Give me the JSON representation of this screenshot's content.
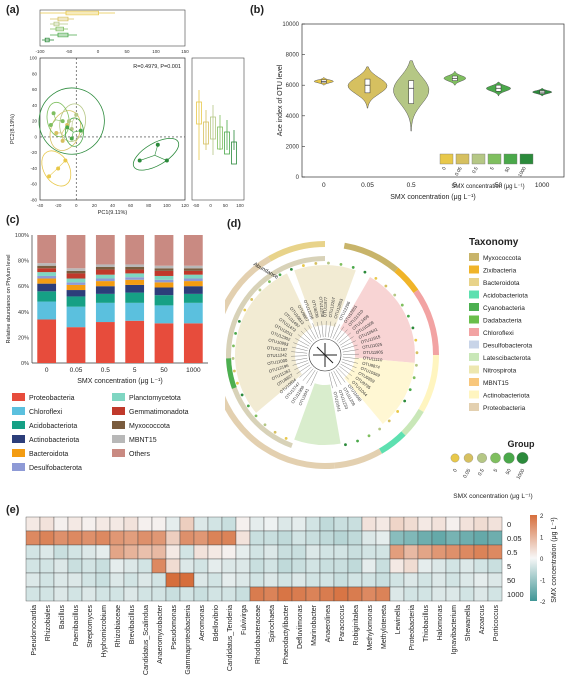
{
  "panel_labels": {
    "a": "(a)",
    "b": "(b)",
    "c": "(c)",
    "d": "(d)",
    "e": "(e)"
  },
  "colors": {
    "sx0": "#e8c84a",
    "sx005": "#d6c060",
    "sx05": "#b5c785",
    "sx5": "#7fbf5f",
    "sx50": "#4aa84a",
    "sx1000": "#2b8a3b"
  },
  "chart_data": [
    {
      "id": "a",
      "type": "scatter",
      "title": "",
      "xlabel": "PC1(9.11%)",
      "ylabel": "PC2(8.19%)",
      "xlim": [
        -40,
        120
      ],
      "ylim": [
        -80,
        100
      ],
      "xticks": [
        -40,
        -20,
        0,
        20,
        40,
        60,
        80,
        100,
        120
      ],
      "yticks": [
        -80,
        -60,
        -40,
        -20,
        0,
        20,
        40,
        60,
        80,
        100
      ],
      "annotation": "R=0.4979, P=0.001",
      "top_box_ticks": [
        -100,
        -50,
        0,
        50,
        100,
        150
      ],
      "right_box_ticks": [
        -50,
        0,
        50,
        100
      ],
      "series": [
        {
          "name": "0",
          "points": [
            [
              -30,
              -50
            ],
            [
              -20,
              -40
            ],
            [
              -12,
              -30
            ]
          ]
        },
        {
          "name": "0.05",
          "points": [
            [
              -22,
              5
            ],
            [
              -10,
              15
            ],
            [
              -15,
              -5
            ]
          ]
        },
        {
          "name": "0.5",
          "points": [
            [
              -8,
              20
            ],
            [
              0,
              28
            ],
            [
              -5,
              10
            ]
          ]
        },
        {
          "name": "5",
          "points": [
            [
              -25,
              30
            ],
            [
              -15,
              20
            ],
            [
              -28,
              15
            ]
          ]
        },
        {
          "name": "50",
          "points": [
            [
              -5,
              -2
            ],
            [
              5,
              8
            ],
            [
              -10,
              12
            ]
          ]
        },
        {
          "name": "1000",
          "points": [
            [
              70,
              -30
            ],
            [
              90,
              -10
            ],
            [
              100,
              -30
            ]
          ]
        }
      ]
    },
    {
      "id": "b",
      "type": "violin",
      "xlabel": "SMX concentration (μg L⁻¹)",
      "ylabel": "Ace index of OTU level",
      "ylim": [
        0,
        10000
      ],
      "yticks": [
        0,
        2000,
        4000,
        6000,
        8000,
        10000
      ],
      "categories": [
        "0",
        "0.05",
        "0.5",
        "5",
        "50",
        "1000"
      ],
      "values": [
        {
          "min": 6000,
          "q1": 6150,
          "median": 6250,
          "q3": 6350,
          "max": 6500
        },
        {
          "min": 4500,
          "q1": 5500,
          "median": 6000,
          "q3": 6400,
          "max": 7200
        },
        {
          "min": 3000,
          "q1": 4800,
          "median": 5800,
          "q3": 6300,
          "max": 7600
        },
        {
          "min": 6000,
          "q1": 6300,
          "median": 6450,
          "q3": 6600,
          "max": 6900
        },
        {
          "min": 5300,
          "q1": 5600,
          "median": 5800,
          "q3": 6000,
          "max": 6200
        },
        {
          "min": 5300,
          "q1": 5450,
          "median": 5550,
          "q3": 5650,
          "max": 5800
        }
      ],
      "legend_title": "SMX concentration (μg L⁻¹)"
    },
    {
      "id": "c",
      "type": "bar",
      "xlabel": "SMX concentration (μg L⁻¹)",
      "ylabel": "Relative abundance on Phylum level",
      "ylim": [
        0,
        1
      ],
      "yticks": [
        "0%",
        "20%",
        "40%",
        "60%",
        "80%",
        "100%"
      ],
      "categories": [
        "0",
        "0.05",
        "0.5",
        "5",
        "50",
        "1000"
      ],
      "series": [
        {
          "name": "Proteobacteria",
          "values": [
            0.34,
            0.28,
            0.32,
            0.33,
            0.31,
            0.31
          ]
        },
        {
          "name": "Chloroflexi",
          "values": [
            0.14,
            0.16,
            0.15,
            0.14,
            0.14,
            0.16
          ]
        },
        {
          "name": "Acidobacteriota",
          "values": [
            0.08,
            0.08,
            0.07,
            0.08,
            0.08,
            0.07
          ]
        },
        {
          "name": "Actinobacteriota",
          "values": [
            0.06,
            0.05,
            0.06,
            0.06,
            0.06,
            0.06
          ]
        },
        {
          "name": "Bacteroidota",
          "values": [
            0.04,
            0.04,
            0.04,
            0.04,
            0.04,
            0.04
          ]
        },
        {
          "name": "Desulfobacterota",
          "values": [
            0.02,
            0.02,
            0.02,
            0.02,
            0.02,
            0.02
          ]
        },
        {
          "name": "Planctomycetota",
          "values": [
            0.03,
            0.03,
            0.03,
            0.03,
            0.03,
            0.03
          ]
        },
        {
          "name": "Gemmatimonadota",
          "values": [
            0.03,
            0.04,
            0.04,
            0.03,
            0.04,
            0.03
          ]
        },
        {
          "name": "Myxococcota",
          "values": [
            0.02,
            0.02,
            0.02,
            0.02,
            0.02,
            0.02
          ]
        },
        {
          "name": "MBNT15",
          "values": [
            0.02,
            0.02,
            0.02,
            0.02,
            0.02,
            0.02
          ]
        },
        {
          "name": "Others",
          "values": [
            0.22,
            0.26,
            0.23,
            0.23,
            0.24,
            0.24
          ]
        }
      ],
      "series_colors": [
        "#e74c3c",
        "#5bc0de",
        "#16a085",
        "#2c3e7a",
        "#f39c12",
        "#8e9ad6",
        "#7fd6c2",
        "#c0392b",
        "#7a5c3e",
        "#b8b8b8",
        "#c98a82"
      ]
    },
    {
      "id": "d",
      "type": "tree",
      "ring_label": "Abundance",
      "taxonomy_title": "Taxonomy",
      "taxonomy": [
        {
          "name": "Myxococcota",
          "color": "#c8b46a"
        },
        {
          "name": "Zixibacteria",
          "color": "#f0b429"
        },
        {
          "name": "Bacteroidota",
          "color": "#e8d38a"
        },
        {
          "name": "Acidobacteriota",
          "color": "#5de0b0"
        },
        {
          "name": "Cyanobacteria",
          "color": "#4caf50"
        },
        {
          "name": "Dadabacteria",
          "color": "#6abf4b"
        },
        {
          "name": "Chloroflexi",
          "color": "#f2a3a3"
        },
        {
          "name": "Desulfobacterota",
          "color": "#c8d4e8"
        },
        {
          "name": "Latescibacterota",
          "color": "#c9e7b8"
        },
        {
          "name": "Nitrospirota",
          "color": "#ede7b0"
        },
        {
          "name": "MBNT15",
          "color": "#f8c77d"
        },
        {
          "name": "Actinobacteriota",
          "color": "#fff5c0"
        },
        {
          "name": "Proteobacteria",
          "color": "#e3d0b0"
        }
      ],
      "group_title": "Group",
      "group_labels": [
        "0",
        "0.05",
        "0.5",
        "5",
        "50",
        "1000"
      ],
      "group_axis": "SMX concentration (μg L⁻¹)",
      "otus": [
        "OTU3041",
        "OTU11908",
        "OTU13747",
        "OTU10834",
        "OTU8827",
        "OTU11262",
        "OTU12196",
        "OTU11000",
        "OTU11242",
        "OTU12187",
        "OTU10993",
        "OTU12302",
        "OTU12011",
        "OTU11472",
        "OTU11497",
        "OTU10813",
        "OTU9807",
        "OTU12236",
        "OTU8236",
        "OTU12258",
        "OTU11877",
        "OTU12267",
        "OTU12853",
        "OTU12296",
        "OTU12851",
        "OTU11310",
        "OTU12459",
        "OTU10309",
        "OTU10541",
        "OTU11915",
        "OTU11025",
        "OTU11905",
        "OTU11110",
        "OTU8874",
        "OTU10569",
        "OTU9859",
        "OTU9795",
        "OTU11044",
        "OTU11048",
        "OTU11209",
        "OTU11233",
        "OTU10541b"
      ]
    },
    {
      "id": "e",
      "type": "heatmap",
      "ylabel": "SMX concentration (μg L⁻¹)",
      "rows": [
        "0",
        "0.05",
        "0.5",
        "5",
        "50",
        "1000"
      ],
      "columns": [
        "Pseudonocardia",
        "Rhizobiales",
        "Bacillus",
        "Paenibacillus",
        "Streptomyces",
        "Hyphomicrobium",
        "Rhizobiaceae",
        "Brevibacillus",
        "Candidatus_Scalindua",
        "Anaeromyxobacter",
        "Pseudomonas",
        "Gammaproteobacteria",
        "Aeromonas",
        "Bdellovibrio",
        "Candidatus_Tenderia",
        "Fulvivirga",
        "Rhodobacteraceae",
        "Spirochaeta",
        "Phaeodactylibacter",
        "Defluviimonas",
        "Marinobacter",
        "Anaerolinea",
        "Paracoccus",
        "Robiginitalea",
        "Methylomonas",
        "Methyloteneta",
        "Lewinella",
        "Proteobacteria",
        "Thiobacillus",
        "Halomonas",
        "Ignavibacterium",
        "Shewanella",
        "Azoarcus",
        "Porticoccus"
      ],
      "scale": [
        -2,
        -1,
        0,
        1,
        2
      ],
      "values": [
        [
          0.2,
          0.3,
          0.1,
          0.2,
          0.1,
          0.2,
          0.2,
          0.3,
          0.1,
          0.1,
          -0.2,
          0.6,
          -0.3,
          -0.4,
          -0.5,
          0.1,
          -0.2,
          -0.1,
          -0.3,
          -0.2,
          -0.4,
          -0.6,
          -0.5,
          -0.5,
          0.3,
          0.2,
          0.5,
          0.4,
          0.2,
          0.3,
          0.1,
          0.3,
          0.4,
          0.3
        ],
        [
          1.6,
          1.7,
          1.5,
          1.6,
          1.5,
          1.6,
          1.4,
          1.3,
          1.5,
          1.4,
          0.6,
          1.5,
          1.4,
          1.7,
          1.7,
          0.3,
          -0.5,
          -0.5,
          -0.6,
          -0.4,
          -0.5,
          -0.6,
          -0.7,
          -0.6,
          -0.3,
          -0.2,
          -1.2,
          -1.3,
          -1.5,
          -1.6,
          -1.4,
          -1.5,
          -1.6,
          -1.5
        ],
        [
          -0.4,
          -0.3,
          -0.5,
          -0.4,
          -0.3,
          -0.2,
          1.2,
          1.0,
          0.8,
          0.9,
          0.2,
          -0.4,
          0.3,
          0.2,
          0.1,
          -0.2,
          -0.4,
          -0.3,
          -0.5,
          -0.5,
          -0.3,
          -0.4,
          -0.4,
          -0.5,
          -0.4,
          -0.4,
          1.3,
          0.9,
          1.2,
          1.4,
          1.5,
          1.6,
          1.7,
          1.6
        ],
        [
          -0.4,
          -0.4,
          -0.3,
          -0.5,
          -0.4,
          -0.5,
          -0.2,
          -0.3,
          -0.4,
          1.6,
          0.4,
          -0.3,
          -0.4,
          -0.2,
          -0.3,
          -0.3,
          -0.5,
          -0.4,
          -0.6,
          -0.5,
          -0.4,
          -0.5,
          -0.5,
          -0.6,
          -0.2,
          -0.5,
          0.2,
          0.4,
          -0.2,
          -0.3,
          -0.4,
          -0.3,
          -0.4,
          -0.5
        ],
        [
          -0.3,
          -0.4,
          -0.3,
          -0.3,
          -0.4,
          -0.5,
          -0.3,
          -0.4,
          -0.3,
          -0.4,
          2.2,
          2.2,
          -0.3,
          -0.4,
          -0.2,
          -0.3,
          -0.4,
          -0.3,
          -0.4,
          -0.3,
          -0.4,
          -0.4,
          -0.5,
          -0.4,
          -0.4,
          -0.5,
          -0.4,
          -0.3,
          -0.4,
          -0.3,
          -0.4,
          -0.3,
          -0.2,
          -0.3
        ],
        [
          -0.4,
          -0.4,
          -0.3,
          -0.4,
          -0.3,
          -0.4,
          -0.4,
          -0.3,
          -0.4,
          -0.4,
          -0.5,
          -0.4,
          -0.5,
          -0.4,
          -0.4,
          -0.5,
          1.8,
          1.7,
          1.9,
          1.8,
          1.7,
          1.8,
          1.9,
          1.8,
          1.6,
          1.7,
          -0.3,
          -0.4,
          -0.4,
          -0.3,
          -0.3,
          -0.4,
          -0.3,
          -0.4
        ]
      ]
    }
  ]
}
